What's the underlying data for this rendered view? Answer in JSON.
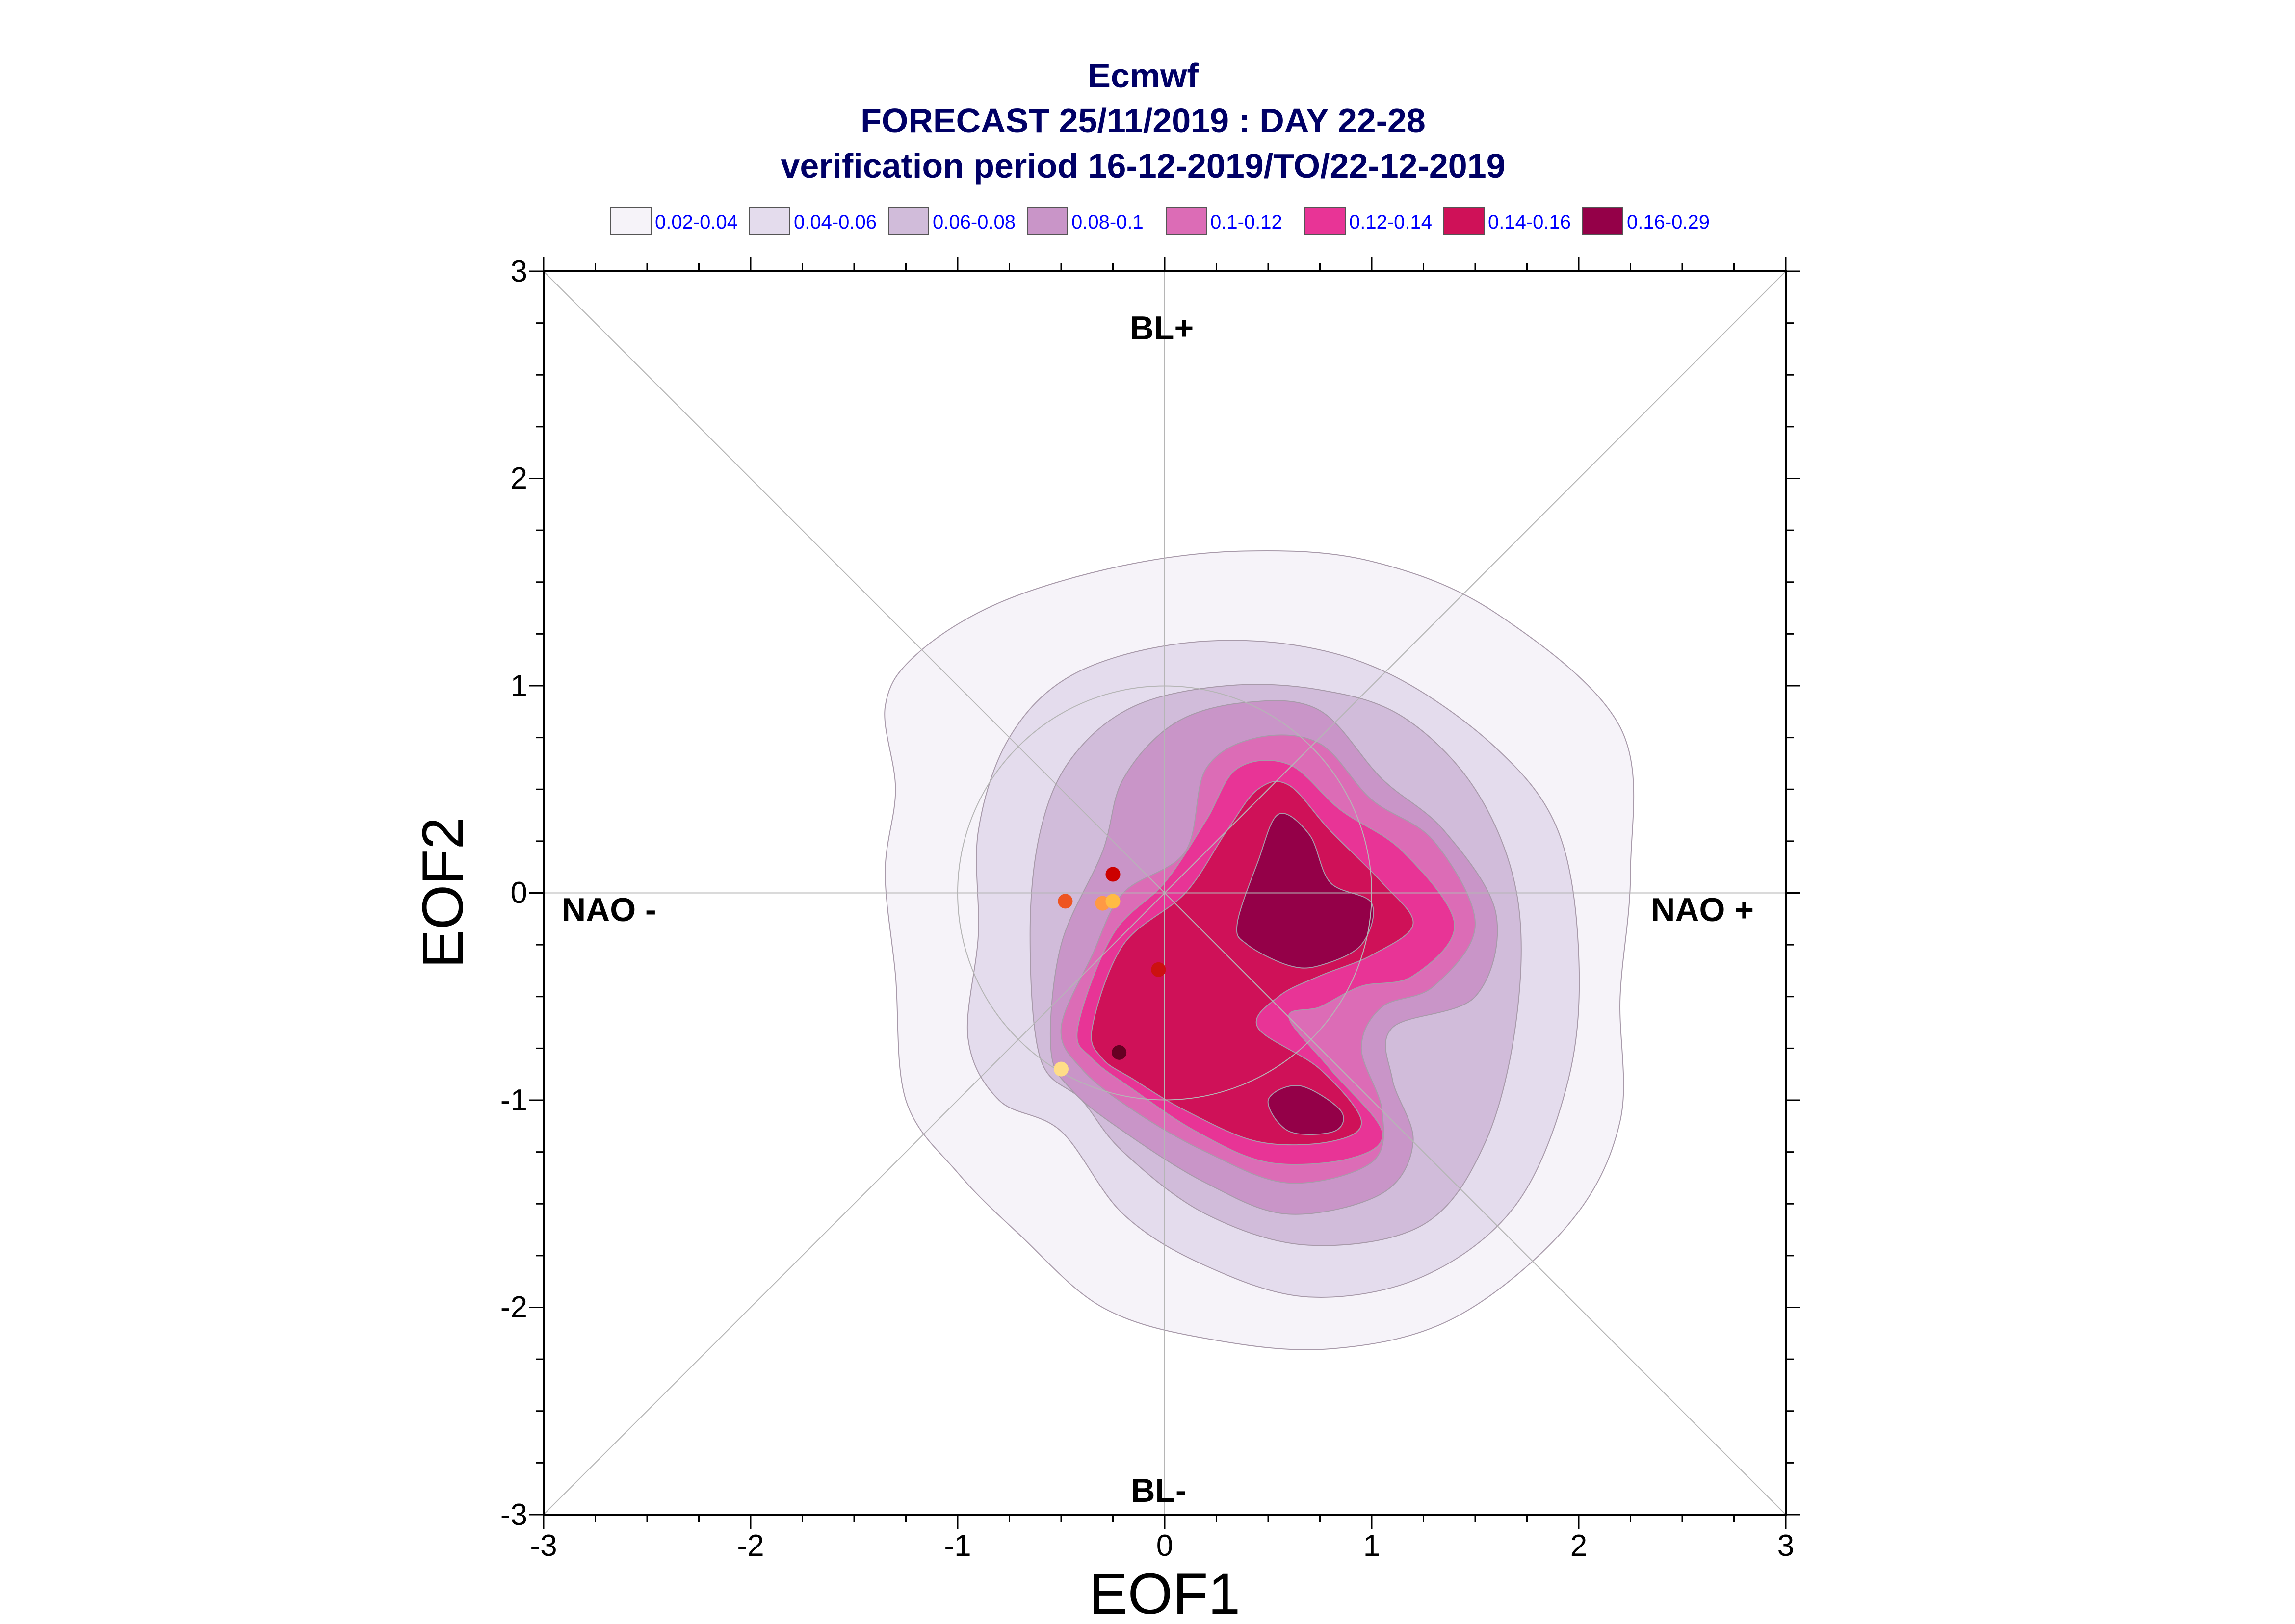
{
  "chart_data": {
    "type": "contour",
    "title_lines": [
      "Ecmwf",
      "FORECAST 25/11/2019 : DAY 22-28",
      "verification period 16-12-2019/TO/22-12-2019"
    ],
    "xlabel": "EOF1",
    "ylabel": "EOF2",
    "xlim": [
      -3,
      3
    ],
    "ylim": [
      -3,
      3
    ],
    "xticks": [
      -3,
      -2,
      -1,
      0,
      1,
      2,
      3
    ],
    "yticks": [
      -3,
      -2,
      -1,
      0,
      1,
      2,
      3
    ],
    "tick_labels": [
      "-3",
      "-2",
      "-1",
      "0",
      "1",
      "2",
      "3"
    ],
    "region_labels": {
      "top": "BL+",
      "bottom": "BL-",
      "left": "NAO -",
      "right": "NAO +"
    },
    "legend": [
      {
        "label": "0.02-0.04",
        "color": "#f6f3f9"
      },
      {
        "label": "0.04-0.06",
        "color": "#e4dced"
      },
      {
        "label": "0.06-0.08",
        "color": "#d1bcda"
      },
      {
        "label": "0.08-0.1",
        "color": "#c995c8"
      },
      {
        "label": "0.1-0.12",
        "color": "#dc6cb6"
      },
      {
        "label": "0.12-0.14",
        "color": "#e83496"
      },
      {
        "label": "0.14-0.16",
        "color": "#cf1158"
      },
      {
        "label": "0.16-0.29",
        "color": "#940048"
      }
    ],
    "contour_levels": [
      {
        "level": "0.02-0.04",
        "color": "#f6f3f9",
        "outline": [
          [
            -1.3,
            -0.4
          ],
          [
            -1.35,
            0.1
          ],
          [
            -1.3,
            0.5
          ],
          [
            -1.35,
            0.9
          ],
          [
            -1.2,
            1.15
          ],
          [
            -0.8,
            1.4
          ],
          [
            -0.2,
            1.58
          ],
          [
            0.4,
            1.65
          ],
          [
            1.0,
            1.6
          ],
          [
            1.6,
            1.35
          ],
          [
            2.2,
            0.8
          ],
          [
            2.25,
            0.1
          ],
          [
            2.2,
            -0.5
          ],
          [
            2.2,
            -1.1
          ],
          [
            1.95,
            -1.6
          ],
          [
            1.4,
            -2.05
          ],
          [
            0.8,
            -2.2
          ],
          [
            0.2,
            -2.15
          ],
          [
            -0.3,
            -2.0
          ],
          [
            -0.7,
            -1.65
          ],
          [
            -1.0,
            -1.35
          ],
          [
            -1.25,
            -1.0
          ]
        ]
      },
      {
        "level": "0.04-0.06",
        "color": "#e4dced",
        "outline": [
          [
            -0.95,
            -0.7
          ],
          [
            -0.9,
            -0.2
          ],
          [
            -0.9,
            0.3
          ],
          [
            -0.75,
            0.75
          ],
          [
            -0.45,
            1.05
          ],
          [
            0.05,
            1.2
          ],
          [
            0.6,
            1.2
          ],
          [
            1.1,
            1.05
          ],
          [
            1.6,
            0.7
          ],
          [
            1.9,
            0.3
          ],
          [
            2.0,
            -0.3
          ],
          [
            1.95,
            -0.9
          ],
          [
            1.7,
            -1.5
          ],
          [
            1.25,
            -1.85
          ],
          [
            0.7,
            -1.95
          ],
          [
            0.2,
            -1.8
          ],
          [
            -0.2,
            -1.55
          ],
          [
            -0.5,
            -1.15
          ],
          [
            -0.8,
            -1.0
          ]
        ]
      },
      {
        "level": "0.06-0.08",
        "color": "#d1bcda",
        "outline": [
          [
            -0.6,
            -0.8
          ],
          [
            -0.65,
            -0.2
          ],
          [
            -0.6,
            0.3
          ],
          [
            -0.45,
            0.65
          ],
          [
            -0.15,
            0.9
          ],
          [
            0.3,
            1.0
          ],
          [
            0.75,
            0.98
          ],
          [
            1.15,
            0.85
          ],
          [
            1.5,
            0.5
          ],
          [
            1.7,
            0.0
          ],
          [
            1.7,
            -0.6
          ],
          [
            1.55,
            -1.2
          ],
          [
            1.25,
            -1.6
          ],
          [
            0.7,
            -1.7
          ],
          [
            0.2,
            -1.55
          ],
          [
            -0.2,
            -1.25
          ],
          [
            -0.4,
            -1.0
          ]
        ]
      },
      {
        "level": "0.08-0.1",
        "color": "#c995c8",
        "outline": [
          [
            -0.55,
            -0.75
          ],
          [
            -0.5,
            -0.25
          ],
          [
            -0.3,
            0.2
          ],
          [
            -0.2,
            0.55
          ],
          [
            0.05,
            0.82
          ],
          [
            0.4,
            0.92
          ],
          [
            0.75,
            0.88
          ],
          [
            1.05,
            0.55
          ],
          [
            1.35,
            0.3
          ],
          [
            1.6,
            -0.1
          ],
          [
            1.5,
            -0.5
          ],
          [
            1.1,
            -0.65
          ],
          [
            1.1,
            -0.9
          ],
          [
            1.2,
            -1.2
          ],
          [
            1.05,
            -1.45
          ],
          [
            0.6,
            -1.55
          ],
          [
            0.2,
            -1.4
          ],
          [
            -0.2,
            -1.15
          ],
          [
            -0.45,
            -0.95
          ]
        ]
      },
      {
        "level": "0.1-0.12",
        "color": "#dc6cb6",
        "outline": [
          [
            -0.5,
            -0.65
          ],
          [
            -0.35,
            -0.3
          ],
          [
            -0.2,
            0.0
          ],
          [
            0.1,
            0.2
          ],
          [
            0.2,
            0.6
          ],
          [
            0.45,
            0.75
          ],
          [
            0.75,
            0.72
          ],
          [
            1.0,
            0.45
          ],
          [
            1.3,
            0.25
          ],
          [
            1.5,
            -0.15
          ],
          [
            1.3,
            -0.45
          ],
          [
            1.05,
            -0.55
          ],
          [
            0.95,
            -0.75
          ],
          [
            1.05,
            -1.05
          ],
          [
            1.0,
            -1.3
          ],
          [
            0.6,
            -1.4
          ],
          [
            0.2,
            -1.25
          ],
          [
            -0.15,
            -1.05
          ],
          [
            -0.4,
            -0.85
          ]
        ]
      },
      {
        "level": "0.12-0.14",
        "color": "#e83496",
        "outline": [
          [
            -0.42,
            -0.65
          ],
          [
            -0.25,
            -0.2
          ],
          [
            0.0,
            0.05
          ],
          [
            0.2,
            0.35
          ],
          [
            0.35,
            0.6
          ],
          [
            0.6,
            0.62
          ],
          [
            0.85,
            0.4
          ],
          [
            1.15,
            0.2
          ],
          [
            1.4,
            -0.15
          ],
          [
            1.2,
            -0.4
          ],
          [
            0.95,
            -0.45
          ],
          [
            0.75,
            -0.55
          ],
          [
            0.6,
            -0.6
          ],
          [
            0.8,
            -0.85
          ],
          [
            1.05,
            -1.15
          ],
          [
            0.9,
            -1.28
          ],
          [
            0.5,
            -1.3
          ],
          [
            0.15,
            -1.15
          ],
          [
            -0.15,
            -0.95
          ],
          [
            -0.35,
            -0.8
          ]
        ]
      },
      {
        "level": "0.14-0.16",
        "color": "#cf1158",
        "outline": [
          [
            -0.35,
            -0.65
          ],
          [
            -0.2,
            -0.25
          ],
          [
            0.1,
            0.0
          ],
          [
            0.3,
            0.3
          ],
          [
            0.45,
            0.5
          ],
          [
            0.6,
            0.52
          ],
          [
            0.8,
            0.3
          ],
          [
            1.05,
            0.05
          ],
          [
            1.2,
            -0.15
          ],
          [
            1.0,
            -0.3
          ],
          [
            0.75,
            -0.4
          ],
          [
            0.55,
            -0.5
          ],
          [
            0.45,
            -0.65
          ],
          [
            0.75,
            -0.85
          ],
          [
            0.95,
            -1.1
          ],
          [
            0.8,
            -1.2
          ],
          [
            0.45,
            -1.2
          ],
          [
            0.1,
            -1.05
          ],
          [
            -0.15,
            -0.9
          ],
          [
            -0.3,
            -0.8
          ]
        ]
      },
      {
        "level": "0.16-0.29",
        "color": "#940048",
        "outline": [
          [
            0.35,
            -0.15
          ],
          [
            0.45,
            0.15
          ],
          [
            0.55,
            0.38
          ],
          [
            0.7,
            0.28
          ],
          [
            0.8,
            0.05
          ],
          [
            1.0,
            -0.05
          ],
          [
            0.95,
            -0.25
          ],
          [
            0.75,
            -0.35
          ],
          [
            0.6,
            -0.35
          ],
          [
            0.4,
            -0.25
          ]
        ]
      },
      {
        "level": "0.16-0.29",
        "color": "#940048",
        "outline": [
          [
            0.5,
            -1.0
          ],
          [
            0.65,
            -0.93
          ],
          [
            0.85,
            -1.05
          ],
          [
            0.82,
            -1.15
          ],
          [
            0.6,
            -1.15
          ]
        ]
      }
    ],
    "guide_circle_radius": 1.0,
    "points": [
      {
        "x": -0.25,
        "y": 0.09,
        "color": "#cc0000"
      },
      {
        "x": -0.48,
        "y": -0.04,
        "color": "#ee5522"
      },
      {
        "x": -0.3,
        "y": -0.05,
        "color": "#ff9944"
      },
      {
        "x": -0.25,
        "y": -0.04,
        "color": "#ffbb44"
      },
      {
        "x": -0.03,
        "y": -0.37,
        "color": "#cc1111"
      },
      {
        "x": -0.22,
        "y": -0.77,
        "color": "#660022"
      },
      {
        "x": -0.5,
        "y": -0.85,
        "color": "#ffdd88"
      }
    ]
  }
}
